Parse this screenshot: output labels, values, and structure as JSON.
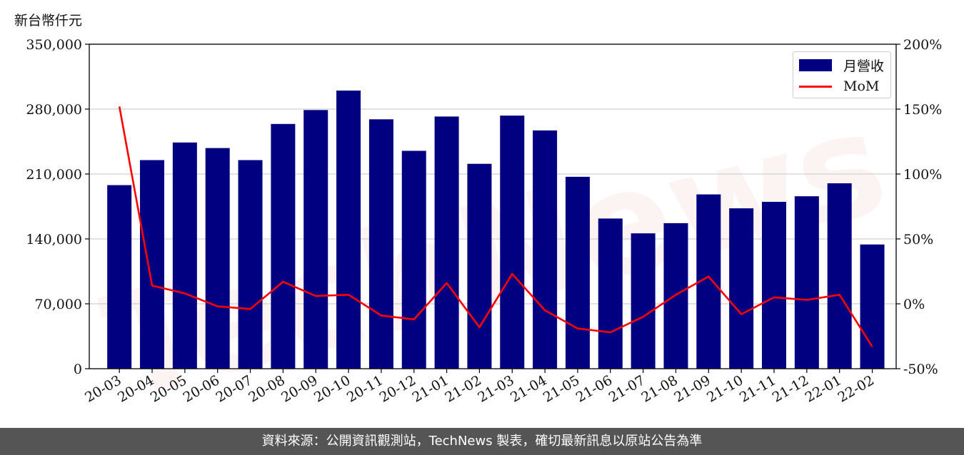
{
  "chart_data": {
    "type": "bar",
    "ylabel": "新台幣仟元",
    "categories": [
      "20-03",
      "20-04",
      "20-05",
      "20-06",
      "20-07",
      "20-08",
      "20-09",
      "20-10",
      "20-11",
      "20-12",
      "21-01",
      "21-02",
      "21-03",
      "21-04",
      "21-05",
      "21-06",
      "21-07",
      "21-08",
      "21-09",
      "21-10",
      "21-11",
      "21-12",
      "22-01",
      "22-02"
    ],
    "series": [
      {
        "name": "月營收",
        "type": "bar",
        "axis": "left",
        "color": "#000080",
        "values": [
          198000,
          225000,
          244000,
          238000,
          225000,
          264000,
          279000,
          300000,
          269000,
          235000,
          272000,
          221000,
          273000,
          257000,
          207000,
          162000,
          146000,
          157000,
          188000,
          173000,
          180000,
          186000,
          200000,
          134000
        ]
      },
      {
        "name": "MoM",
        "type": "line",
        "axis": "right",
        "color": "#ff0000",
        "values": [
          152,
          14,
          8,
          -2,
          -4,
          17,
          6,
          7,
          -9,
          -12,
          16,
          -18,
          23,
          -5,
          -19,
          -22,
          -10,
          7,
          21,
          -8,
          5,
          3,
          7,
          -33
        ]
      }
    ],
    "left_axis": {
      "ylim": [
        0,
        350000
      ],
      "ticks": [
        "0",
        "70,000",
        "140,000",
        "210,000",
        "280,000",
        "350,000"
      ],
      "tick_values": [
        0,
        70000,
        140000,
        210000,
        280000,
        350000
      ]
    },
    "right_axis": {
      "ylim": [
        -50,
        200
      ],
      "ticks": [
        "-50%",
        "0%",
        "50%",
        "100%",
        "150%",
        "200%"
      ],
      "tick_values": [
        -50,
        0,
        50,
        100,
        150,
        200
      ]
    },
    "grid": "horizontal",
    "legend": "top-right"
  },
  "watermark": "TechNews",
  "footer": {
    "source_text": "資料來源：公開資訊觀測站，TechNews 製表，確切最新訊息以原站公告為準"
  }
}
